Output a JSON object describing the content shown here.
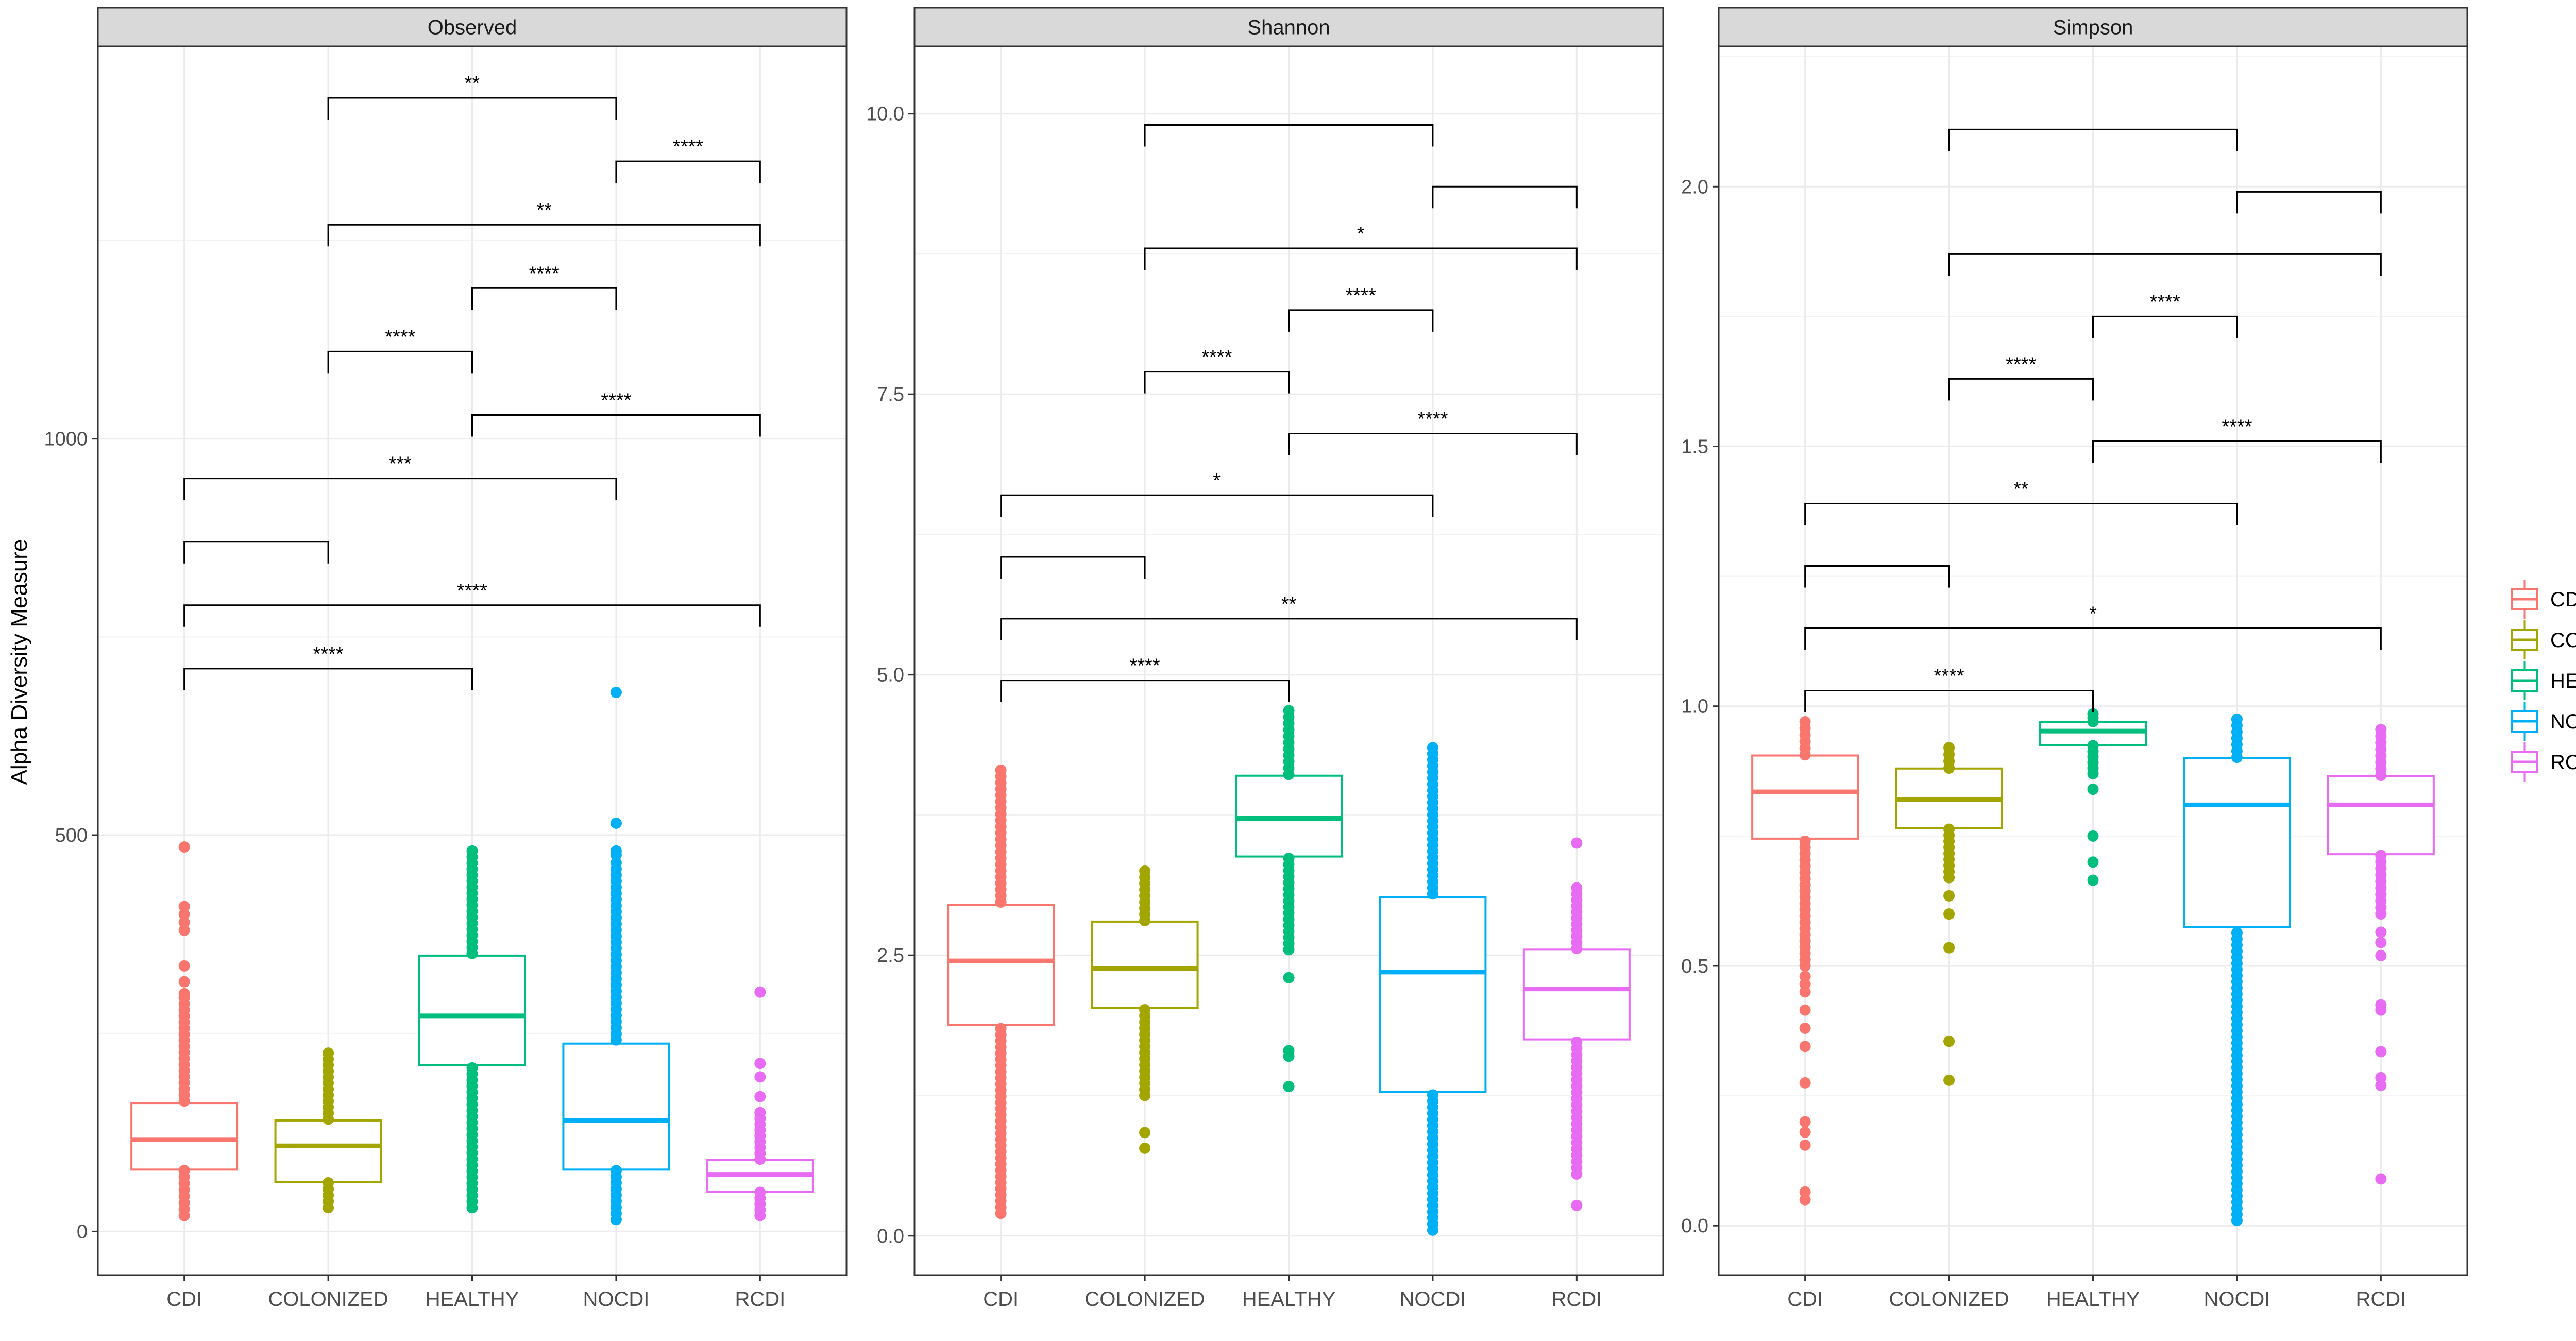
{
  "y_axis_label": "Alpha Diversity Measure",
  "legend": {
    "placement": "right",
    "entries": [
      {
        "label": "CDI",
        "color": "#F8766D"
      },
      {
        "label": "COLONIZED",
        "color": "#A3A500"
      },
      {
        "label": "HEALTHY",
        "color": "#00BF7D"
      },
      {
        "label": "NOCDI",
        "color": "#00B0F6"
      },
      {
        "label": "RCDI",
        "color": "#E76BF3"
      }
    ]
  },
  "chart_data": [
    {
      "type": "box",
      "title": "Observed",
      "categories": [
        "CDI",
        "COLONIZED",
        "HEALTHY",
        "NOCDI",
        "RCDI"
      ],
      "ylim": [
        -55,
        1495
      ],
      "yticks": [
        0,
        500,
        1000
      ],
      "grid": true,
      "boxes": [
        {
          "q1": 78,
          "median": 116,
          "q3": 162,
          "whisker_low": 20,
          "whisker_high": 287,
          "outliers": [
            295,
            300,
            315,
            335,
            380,
            390,
            400,
            410,
            485
          ]
        },
        {
          "q1": 62,
          "median": 108,
          "q3": 140,
          "whisker_low": 30,
          "whisker_high": 225,
          "outliers": []
        },
        {
          "q1": 210,
          "median": 272,
          "q3": 348,
          "whisker_low": 30,
          "whisker_high": 480,
          "outliers": []
        },
        {
          "q1": 78,
          "median": 140,
          "q3": 237,
          "whisker_low": 15,
          "whisker_high": 465,
          "outliers": [
            475,
            480,
            515,
            680
          ]
        },
        {
          "q1": 50,
          "median": 72,
          "q3": 90,
          "whisker_low": 20,
          "whisker_high": 150,
          "outliers": [
            170,
            195,
            212,
            302
          ]
        }
      ],
      "brackets": [
        {
          "from": "CDI",
          "to": "HEALTHY",
          "y": 710,
          "label": "****"
        },
        {
          "from": "CDI",
          "to": "RCDI",
          "y": 790,
          "label": "****"
        },
        {
          "from": "CDI",
          "to": "COLONIZED",
          "y": 870,
          "label": ""
        },
        {
          "from": "CDI",
          "to": "NOCDI",
          "y": 950,
          "label": "***"
        },
        {
          "from": "HEALTHY",
          "to": "RCDI",
          "y": 1030,
          "label": "****"
        },
        {
          "from": "COLONIZED",
          "to": "HEALTHY",
          "y": 1110,
          "label": "****"
        },
        {
          "from": "HEALTHY",
          "to": "NOCDI",
          "y": 1190,
          "label": "****"
        },
        {
          "from": "COLONIZED",
          "to": "RCDI",
          "y": 1270,
          "label": "**"
        },
        {
          "from": "NOCDI",
          "to": "RCDI",
          "y": 1350,
          "label": "****"
        },
        {
          "from": "COLONIZED",
          "to": "NOCDI",
          "y": 1430,
          "label": "**"
        }
      ]
    },
    {
      "type": "box",
      "title": "Shannon",
      "categories": [
        "CDI",
        "COLONIZED",
        "HEALTHY",
        "NOCDI",
        "RCDI"
      ],
      "ylim": [
        -0.35,
        10.6
      ],
      "yticks": [
        0.0,
        2.5,
        5.0,
        7.5,
        10.0
      ],
      "grid": true,
      "boxes": [
        {
          "q1": 1.88,
          "median": 2.45,
          "q3": 2.95,
          "whisker_low": 0.2,
          "whisker_high": 4.15,
          "outliers": []
        },
        {
          "q1": 2.03,
          "median": 2.38,
          "q3": 2.8,
          "whisker_low": 1.25,
          "whisker_high": 3.25,
          "outliers": [
            0.78,
            0.92
          ]
        },
        {
          "q1": 3.38,
          "median": 3.72,
          "q3": 4.1,
          "whisker_low": 2.55,
          "whisker_high": 4.68,
          "outliers": [
            1.33,
            1.6,
            1.65,
            2.3
          ]
        },
        {
          "q1": 1.28,
          "median": 2.35,
          "q3": 3.02,
          "whisker_low": 0.05,
          "whisker_high": 4.35,
          "outliers": []
        },
        {
          "q1": 1.75,
          "median": 2.2,
          "q3": 2.55,
          "whisker_low": 0.55,
          "whisker_high": 3.1,
          "outliers": [
            0.27,
            3.5
          ]
        }
      ],
      "brackets": [
        {
          "from": "CDI",
          "to": "HEALTHY",
          "y": 4.95,
          "label": "****"
        },
        {
          "from": "CDI",
          "to": "RCDI",
          "y": 5.5,
          "label": "**"
        },
        {
          "from": "CDI",
          "to": "COLONIZED",
          "y": 6.05,
          "label": ""
        },
        {
          "from": "CDI",
          "to": "NOCDI",
          "y": 6.6,
          "label": "*"
        },
        {
          "from": "HEALTHY",
          "to": "RCDI",
          "y": 7.15,
          "label": "****"
        },
        {
          "from": "COLONIZED",
          "to": "HEALTHY",
          "y": 7.7,
          "label": "****"
        },
        {
          "from": "HEALTHY",
          "to": "NOCDI",
          "y": 8.25,
          "label": "****"
        },
        {
          "from": "COLONIZED",
          "to": "RCDI",
          "y": 8.8,
          "label": "*"
        },
        {
          "from": "NOCDI",
          "to": "RCDI",
          "y": 9.35,
          "label": ""
        },
        {
          "from": "COLONIZED",
          "to": "NOCDI",
          "y": 9.9,
          "label": ""
        }
      ]
    },
    {
      "type": "box",
      "title": "Simpson",
      "categories": [
        "CDI",
        "COLONIZED",
        "HEALTHY",
        "NOCDI",
        "RCDI"
      ],
      "ylim": [
        -0.095,
        2.27
      ],
      "yticks": [
        0.0,
        0.5,
        1.0,
        1.5,
        2.0
      ],
      "grid": true,
      "boxes": [
        {
          "q1": 0.745,
          "median": 0.835,
          "q3": 0.905,
          "whisker_low": 0.5,
          "whisker_high": 0.97,
          "outliers": [
            0.05,
            0.065,
            0.155,
            0.18,
            0.2,
            0.275,
            0.345,
            0.38,
            0.415,
            0.45,
            0.465,
            0.48
          ]
        },
        {
          "q1": 0.765,
          "median": 0.82,
          "q3": 0.88,
          "whisker_low": 0.67,
          "whisker_high": 0.92,
          "outliers": [
            0.28,
            0.355,
            0.535,
            0.6,
            0.635
          ]
        },
        {
          "q1": 0.925,
          "median": 0.952,
          "q3": 0.97,
          "whisker_low": 0.87,
          "whisker_high": 0.985,
          "outliers": [
            0.665,
            0.7,
            0.75,
            0.84
          ]
        },
        {
          "q1": 0.575,
          "median": 0.81,
          "q3": 0.9,
          "whisker_low": 0.01,
          "whisker_high": 0.975,
          "outliers": []
        },
        {
          "q1": 0.715,
          "median": 0.81,
          "q3": 0.865,
          "whisker_low": 0.6,
          "whisker_high": 0.955,
          "outliers": [
            0.09,
            0.27,
            0.285,
            0.335,
            0.415,
            0.425,
            0.52,
            0.545,
            0.565
          ]
        }
      ],
      "brackets": [
        {
          "from": "CDI",
          "to": "HEALTHY",
          "y": 1.03,
          "label": "****"
        },
        {
          "from": "CDI",
          "to": "RCDI",
          "y": 1.15,
          "label": "*"
        },
        {
          "from": "CDI",
          "to": "COLONIZED",
          "y": 1.27,
          "label": ""
        },
        {
          "from": "CDI",
          "to": "NOCDI",
          "y": 1.39,
          "label": "**"
        },
        {
          "from": "HEALTHY",
          "to": "RCDI",
          "y": 1.51,
          "label": "****"
        },
        {
          "from": "COLONIZED",
          "to": "HEALTHY",
          "y": 1.63,
          "label": "****"
        },
        {
          "from": "HEALTHY",
          "to": "NOCDI",
          "y": 1.75,
          "label": "****"
        },
        {
          "from": "COLONIZED",
          "to": "RCDI",
          "y": 1.87,
          "label": ""
        },
        {
          "from": "NOCDI",
          "to": "RCDI",
          "y": 1.99,
          "label": ""
        },
        {
          "from": "COLONIZED",
          "to": "NOCDI",
          "y": 2.11,
          "label": ""
        }
      ]
    }
  ]
}
